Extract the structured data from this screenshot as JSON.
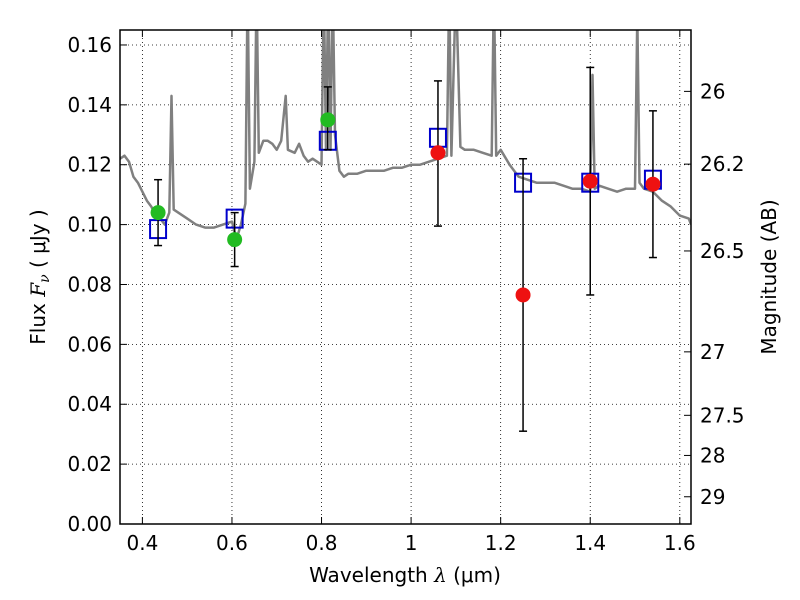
{
  "chart_data": {
    "type": "scatter",
    "title": "",
    "xlabel": "Wavelength",
    "xlabel_symbol": "λ",
    "xlabel_unit": "(μm)",
    "ylabel": "Flux",
    "ylabel_symbol": "F",
    "ylabel_symbol_sub": "ν",
    "ylabel_unit": "( μJy )",
    "y2label": "Magnitude (AB)",
    "xlim": [
      0.35,
      1.625
    ],
    "ylim": [
      0.0,
      0.165
    ],
    "grid": true,
    "x_ticks": [
      0.4,
      0.6,
      0.8,
      1.0,
      1.2,
      1.4,
      1.6
    ],
    "x_tick_labels": [
      "0.4",
      "0.6",
      "0.8",
      "1",
      "1.2",
      "1.4",
      "1.6"
    ],
    "y_ticks": [
      0.0,
      0.02,
      0.04,
      0.06,
      0.08,
      0.1,
      0.12,
      0.14,
      0.16
    ],
    "y_tick_labels": [
      "0.00",
      "0.02",
      "0.04",
      "0.06",
      "0.08",
      "0.10",
      "0.12",
      "0.14",
      "0.16"
    ],
    "y2_ticks": [
      {
        "label": "26",
        "flux": 0.1445
      },
      {
        "label": "26.2",
        "flux": 0.1202
      },
      {
        "label": "26.5",
        "flux": 0.0912
      },
      {
        "label": "27",
        "flux": 0.0575
      },
      {
        "label": "27.5",
        "flux": 0.0363
      },
      {
        "label": "28",
        "flux": 0.0229
      },
      {
        "label": "29",
        "flux": 0.0091
      }
    ],
    "series": [
      {
        "kind": "model-spectrum",
        "color": "#808080",
        "points": [
          [
            0.35,
            0.122
          ],
          [
            0.36,
            0.123
          ],
          [
            0.37,
            0.121
          ],
          [
            0.38,
            0.116
          ],
          [
            0.39,
            0.114
          ],
          [
            0.4,
            0.111
          ],
          [
            0.41,
            0.108
          ],
          [
            0.42,
            0.106
          ],
          [
            0.43,
            0.103
          ],
          [
            0.44,
            0.102
          ],
          [
            0.45,
            0.1
          ],
          [
            0.46,
            0.104
          ],
          [
            0.465,
            0.143
          ],
          [
            0.47,
            0.105
          ],
          [
            0.48,
            0.104
          ],
          [
            0.5,
            0.102
          ],
          [
            0.52,
            0.1
          ],
          [
            0.54,
            0.099
          ],
          [
            0.56,
            0.099
          ],
          [
            0.58,
            0.1
          ],
          [
            0.6,
            0.101
          ],
          [
            0.61,
            0.095
          ],
          [
            0.62,
            0.1
          ],
          [
            0.63,
            0.107
          ],
          [
            0.635,
            0.18
          ],
          [
            0.64,
            0.112
          ],
          [
            0.65,
            0.121
          ],
          [
            0.655,
            0.18
          ],
          [
            0.66,
            0.124
          ],
          [
            0.67,
            0.128
          ],
          [
            0.68,
            0.128
          ],
          [
            0.69,
            0.127
          ],
          [
            0.7,
            0.125
          ],
          [
            0.71,
            0.128
          ],
          [
            0.72,
            0.143
          ],
          [
            0.725,
            0.125
          ],
          [
            0.74,
            0.124
          ],
          [
            0.75,
            0.127
          ],
          [
            0.76,
            0.123
          ],
          [
            0.77,
            0.121
          ],
          [
            0.78,
            0.122
          ],
          [
            0.79,
            0.121
          ],
          [
            0.8,
            0.12
          ],
          [
            0.805,
            0.18
          ],
          [
            0.81,
            0.125
          ],
          [
            0.815,
            0.18
          ],
          [
            0.82,
            0.125
          ],
          [
            0.825,
            0.18
          ],
          [
            0.83,
            0.13
          ],
          [
            0.84,
            0.118
          ],
          [
            0.85,
            0.116
          ],
          [
            0.86,
            0.117
          ],
          [
            0.88,
            0.117
          ],
          [
            0.9,
            0.118
          ],
          [
            0.92,
            0.118
          ],
          [
            0.94,
            0.118
          ],
          [
            0.96,
            0.119
          ],
          [
            0.98,
            0.119
          ],
          [
            1.0,
            0.12
          ],
          [
            1.02,
            0.12
          ],
          [
            1.04,
            0.121
          ],
          [
            1.06,
            0.122
          ],
          [
            1.08,
            0.123
          ],
          [
            1.085,
            0.18
          ],
          [
            1.09,
            0.123
          ],
          [
            1.1,
            0.18
          ],
          [
            1.11,
            0.126
          ],
          [
            1.12,
            0.125
          ],
          [
            1.14,
            0.125
          ],
          [
            1.16,
            0.124
          ],
          [
            1.18,
            0.123
          ],
          [
            1.185,
            0.18
          ],
          [
            1.19,
            0.123
          ],
          [
            1.2,
            0.125
          ],
          [
            1.22,
            0.12
          ],
          [
            1.24,
            0.116
          ],
          [
            1.26,
            0.115
          ],
          [
            1.28,
            0.114
          ],
          [
            1.3,
            0.114
          ],
          [
            1.32,
            0.114
          ],
          [
            1.34,
            0.113
          ],
          [
            1.36,
            0.112
          ],
          [
            1.38,
            0.112
          ],
          [
            1.4,
            0.111
          ],
          [
            1.405,
            0.15
          ],
          [
            1.41,
            0.112
          ],
          [
            1.42,
            0.113
          ],
          [
            1.44,
            0.112
          ],
          [
            1.46,
            0.111
          ],
          [
            1.48,
            0.112
          ],
          [
            1.5,
            0.112
          ],
          [
            1.505,
            0.17
          ],
          [
            1.51,
            0.114
          ],
          [
            1.52,
            0.112
          ],
          [
            1.54,
            0.111
          ],
          [
            1.56,
            0.108
          ],
          [
            1.58,
            0.106
          ],
          [
            1.6,
            0.103
          ],
          [
            1.62,
            0.102
          ],
          [
            1.625,
            0.1
          ]
        ]
      },
      {
        "kind": "model-band-flux",
        "marker": "open-square",
        "color": "#0000cc",
        "points": [
          {
            "x": 0.435,
            "y": 0.0985
          },
          {
            "x": 0.606,
            "y": 0.102
          },
          {
            "x": 0.814,
            "y": 0.128
          },
          {
            "x": 1.06,
            "y": 0.129
          },
          {
            "x": 1.25,
            "y": 0.114
          },
          {
            "x": 1.4,
            "y": 0.114
          },
          {
            "x": 1.54,
            "y": 0.115
          }
        ]
      },
      {
        "kind": "observed-optical",
        "marker": "filled-circle",
        "color": "#22bb22",
        "points": [
          {
            "x": 0.435,
            "y": 0.104,
            "yerr_low": 0.093,
            "yerr_high": 0.115
          },
          {
            "x": 0.606,
            "y": 0.095,
            "yerr_low": 0.086,
            "yerr_high": 0.104
          },
          {
            "x": 0.814,
            "y": 0.135,
            "yerr_low": 0.125,
            "yerr_high": 0.146
          }
        ]
      },
      {
        "kind": "observed-nir",
        "marker": "filled-circle",
        "color": "#ee1111",
        "points": [
          {
            "x": 1.06,
            "y": 0.124,
            "yerr_low": 0.0995,
            "yerr_high": 0.148
          },
          {
            "x": 1.25,
            "y": 0.0765,
            "yerr_low": 0.031,
            "yerr_high": 0.122
          },
          {
            "x": 1.4,
            "y": 0.1145,
            "yerr_low": 0.0765,
            "yerr_high": 0.1525
          },
          {
            "x": 1.54,
            "y": 0.1135,
            "yerr_low": 0.089,
            "yerr_high": 0.138
          }
        ]
      }
    ]
  }
}
